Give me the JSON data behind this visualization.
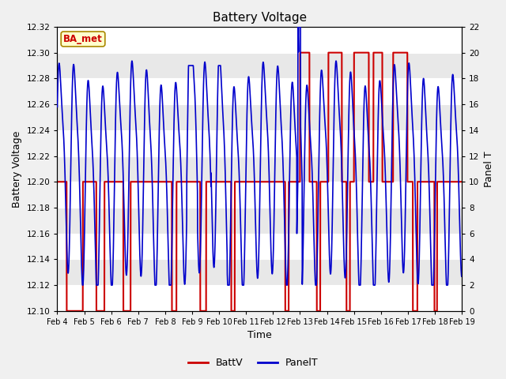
{
  "title": "Battery Voltage",
  "ylabel_left": "Battery Voltage",
  "ylabel_right": "Panel T",
  "xlabel": "Time",
  "xlim_start": 0,
  "xlim_end": 15,
  "ylim_left": [
    12.1,
    12.32
  ],
  "ylim_right": [
    0,
    22
  ],
  "xtick_labels": [
    "Feb 4",
    "Feb 5",
    "Feb 6",
    "Feb 7",
    "Feb 8",
    "Feb 9",
    "Feb 10",
    "Feb 11",
    "Feb 12",
    "Feb 13",
    "Feb 14",
    "Feb 15",
    "Feb 16",
    "Feb 17",
    "Feb 18",
    "Feb 19"
  ],
  "xtick_positions": [
    0,
    1,
    2,
    3,
    4,
    5,
    6,
    7,
    8,
    9,
    10,
    11,
    12,
    13,
    14,
    15
  ],
  "yticks_left": [
    12.1,
    12.12,
    12.14,
    12.16,
    12.18,
    12.2,
    12.22,
    12.24,
    12.26,
    12.28,
    12.3,
    12.32
  ],
  "yticks_right": [
    0,
    2,
    4,
    6,
    8,
    10,
    12,
    14,
    16,
    18,
    20,
    22
  ],
  "background_color": "#f0f0f0",
  "plot_bg_light": "#e8e8e8",
  "plot_bg_dark": "#d8d8d8",
  "grid_color": "#ffffff",
  "batt_color": "#cc0000",
  "panel_color": "#0000cc",
  "legend_label_batt": "BattV",
  "legend_label_panel": "PanelT",
  "watermark_text": "BA_met",
  "watermark_bg": "#ffffcc",
  "watermark_border": "#aa8800",
  "figsize": [
    6.4,
    4.8
  ],
  "dpi": 100
}
